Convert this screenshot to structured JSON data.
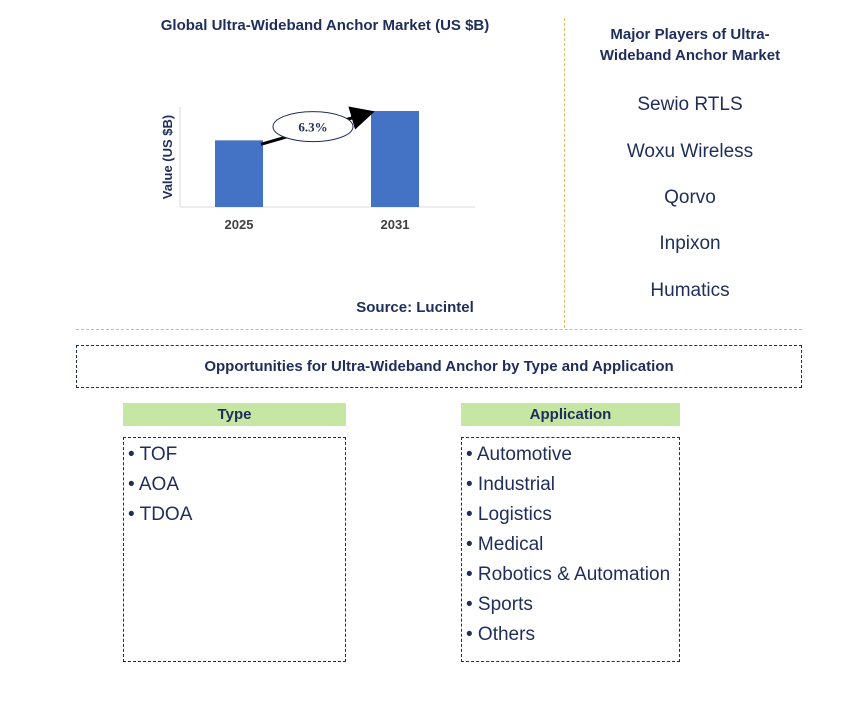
{
  "chart_data": {
    "type": "bar",
    "title": "Global Ultra-Wideband Anchor Market (US $B)",
    "ylabel": "Value (US $B)",
    "categories": [
      "2025",
      "2031"
    ],
    "values": [
      1.0,
      1.44
    ],
    "ylim": [
      0,
      1.5
    ],
    "bar_color": "#4472c4",
    "annotation": {
      "label": "6.3%",
      "type": "cagr-arrow"
    },
    "source": "Source: Lucintel"
  },
  "players": {
    "title": "Major Players of Ultra-Wideband Anchor Market",
    "items": [
      "Sewio RTLS",
      "Woxu Wireless",
      "Qorvo",
      "Inpixon",
      "Humatics"
    ]
  },
  "opportunities": {
    "title": "Opportunities for Ultra-Wideband Anchor by Type and Application",
    "type_header": "Type",
    "type_items": [
      "• TOF",
      "• AOA",
      "• TDOA"
    ],
    "application_header": "Application",
    "application_items": [
      "• Automotive",
      "• Industrial",
      "• Logistics",
      "• Medical",
      "• Robotics & Automation",
      "• Sports",
      "• Others"
    ]
  },
  "colors": {
    "text": "#1f2d5a",
    "bar": "#4472c4",
    "header_fill": "#c6e7a4",
    "divider": "#e0b96a"
  }
}
